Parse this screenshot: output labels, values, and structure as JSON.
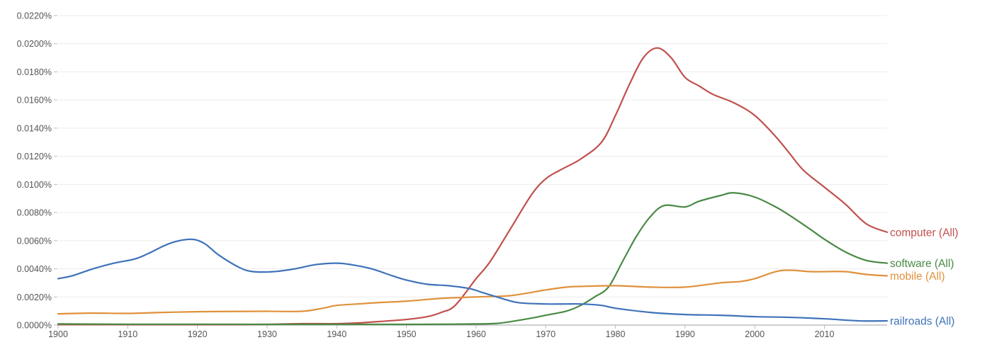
{
  "chart_data": {
    "type": "line",
    "x_range": [
      1900,
      2019
    ],
    "ylim": [
      0,
      0.022
    ],
    "y_ticks": [
      "0.0000%",
      "0.0020%",
      "0.0040%",
      "0.0060%",
      "0.0080%",
      "0.0100%",
      "0.0120%",
      "0.0140%",
      "0.0160%",
      "0.0180%",
      "0.0200%",
      "0.0220%"
    ],
    "x_ticks": [
      "1900",
      "1910",
      "1920",
      "1930",
      "1940",
      "1950",
      "1960",
      "1970",
      "1980",
      "1990",
      "2000",
      "2010"
    ],
    "grid": true,
    "legend": "inline-right",
    "series": [
      {
        "name": "computer (All)",
        "color": "#c0504d",
        "x": [
          1900,
          1905,
          1910,
          1915,
          1920,
          1925,
          1930,
          1935,
          1940,
          1943,
          1946,
          1950,
          1953,
          1955,
          1957,
          1960,
          1962,
          1965,
          1968,
          1970,
          1972,
          1975,
          1978,
          1980,
          1982,
          1984,
          1986,
          1988,
          1990,
          1992,
          1994,
          1997,
          2000,
          2003,
          2005,
          2007,
          2010,
          2013,
          2016,
          2019
        ],
        "values": [
          3e-05,
          3e-05,
          3e-05,
          3e-05,
          3e-05,
          3e-05,
          5e-05,
          0.0001,
          0.0001,
          0.00015,
          0.00025,
          0.0004,
          0.0006,
          0.0009,
          0.0014,
          0.0033,
          0.0045,
          0.0069,
          0.0093,
          0.0104,
          0.011,
          0.0118,
          0.013,
          0.0149,
          0.0171,
          0.019,
          0.0197,
          0.019,
          0.0176,
          0.017,
          0.0164,
          0.0158,
          0.0149,
          0.0134,
          0.0122,
          0.011,
          0.0098,
          0.0086,
          0.0072,
          0.0066
        ]
      },
      {
        "name": "software (All)",
        "color": "#4a8a45",
        "x": [
          1900,
          1910,
          1920,
          1930,
          1940,
          1950,
          1960,
          1963,
          1965,
          1968,
          1970,
          1973,
          1975,
          1977,
          1979,
          1981,
          1983,
          1985,
          1987,
          1990,
          1992,
          1995,
          1997,
          2000,
          2003,
          2005,
          2008,
          2010,
          2013,
          2016,
          2019
        ],
        "values": [
          8e-05,
          6e-05,
          6e-05,
          5e-05,
          5e-05,
          5e-05,
          8e-05,
          0.00012,
          0.00025,
          0.0005,
          0.0007,
          0.001,
          0.0014,
          0.002,
          0.0027,
          0.0045,
          0.0063,
          0.0077,
          0.0085,
          0.0084,
          0.0088,
          0.0092,
          0.0094,
          0.0091,
          0.0084,
          0.0078,
          0.0068,
          0.0061,
          0.0052,
          0.0046,
          0.0044
        ]
      },
      {
        "name": "mobile (All)",
        "color": "#e0913c",
        "x": [
          1900,
          1905,
          1910,
          1915,
          1920,
          1925,
          1930,
          1935,
          1938,
          1940,
          1943,
          1946,
          1950,
          1955,
          1960,
          1965,
          1970,
          1973,
          1975,
          1980,
          1985,
          1990,
          1995,
          1998,
          2000,
          2003,
          2005,
          2008,
          2010,
          2013,
          2016,
          2019
        ],
        "values": [
          0.0008,
          0.00085,
          0.00083,
          0.0009,
          0.00095,
          0.00097,
          0.00098,
          0.00098,
          0.0012,
          0.0014,
          0.0015,
          0.0016,
          0.0017,
          0.0019,
          0.002,
          0.0021,
          0.0025,
          0.0027,
          0.00275,
          0.0028,
          0.0027,
          0.0027,
          0.003,
          0.0031,
          0.0033,
          0.0038,
          0.0039,
          0.0038,
          0.0038,
          0.0038,
          0.0036,
          0.0035
        ]
      },
      {
        "name": "railroads (All)",
        "color": "#3f72b9",
        "x": [
          1900,
          1902,
          1905,
          1908,
          1911,
          1913,
          1916,
          1919,
          1921,
          1923,
          1926,
          1928,
          1931,
          1934,
          1937,
          1940,
          1942,
          1945,
          1948,
          1950,
          1953,
          1956,
          1959,
          1961,
          1963,
          1966,
          1970,
          1973,
          1975,
          1978,
          1980,
          1985,
          1990,
          1995,
          2000,
          2005,
          2010,
          2015,
          2019
        ],
        "values": [
          0.0033,
          0.0035,
          0.004,
          0.0044,
          0.0047,
          0.0051,
          0.0058,
          0.0061,
          0.0058,
          0.005,
          0.0041,
          0.0038,
          0.0038,
          0.004,
          0.0043,
          0.0044,
          0.0043,
          0.004,
          0.0035,
          0.0032,
          0.0029,
          0.0028,
          0.0026,
          0.0023,
          0.002,
          0.0016,
          0.0015,
          0.0015,
          0.0015,
          0.0014,
          0.0012,
          0.0009,
          0.00075,
          0.0007,
          0.0006,
          0.00055,
          0.00045,
          0.0003,
          0.0003
        ]
      }
    ]
  }
}
